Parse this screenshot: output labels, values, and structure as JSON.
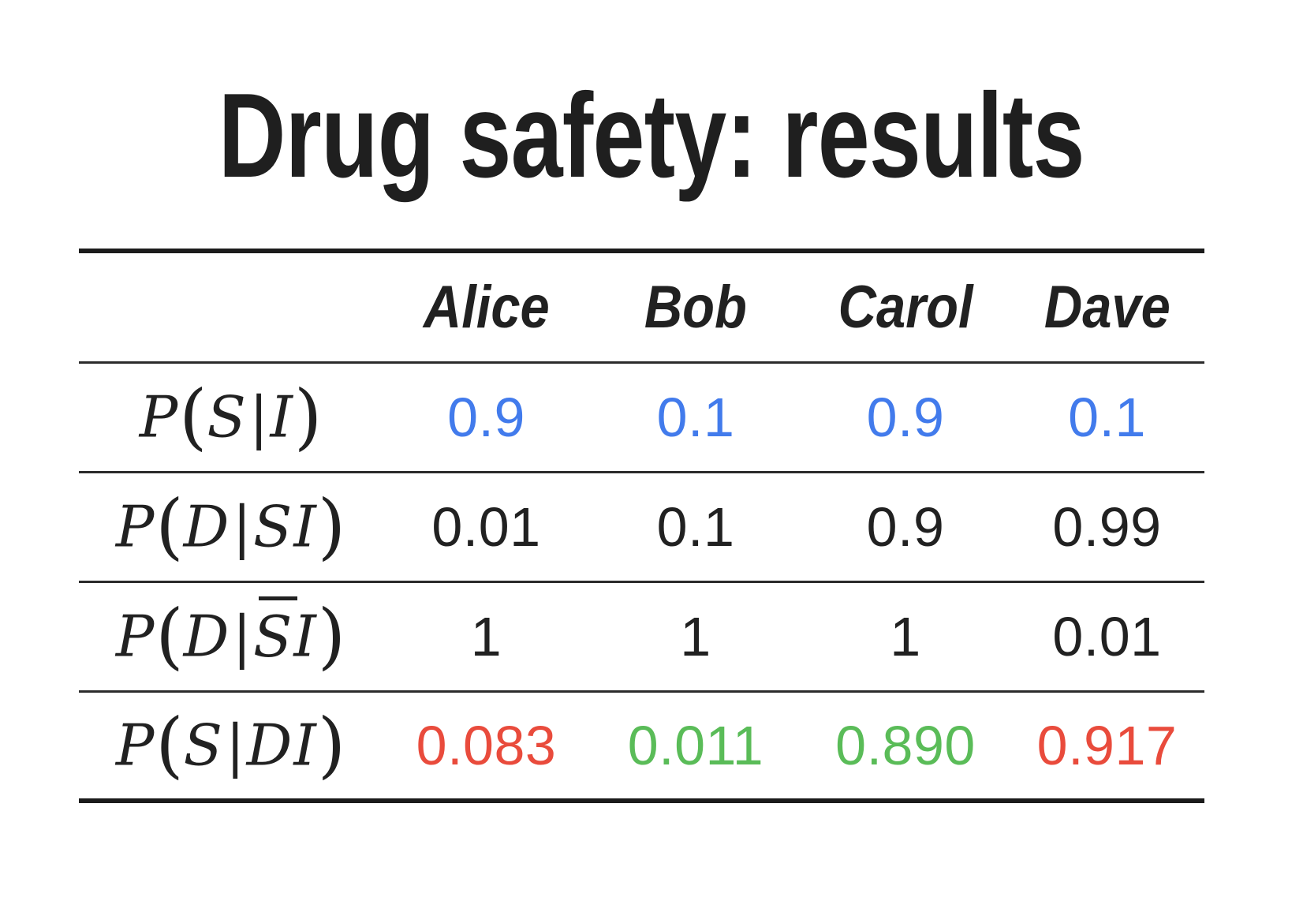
{
  "title": "Drug safety: results",
  "table": {
    "columns": [
      "Alice",
      "Bob",
      "Carol",
      "Dave"
    ],
    "rows": [
      {
        "label": "P(S|I)",
        "values": [
          "0.9",
          "0.1",
          "0.9",
          "0.1"
        ],
        "colors": [
          "blue",
          "blue",
          "blue",
          "blue"
        ]
      },
      {
        "label": "P(D|SI)",
        "values": [
          "0.01",
          "0.1",
          "0.9",
          "0.99"
        ],
        "colors": [
          "ink",
          "ink",
          "ink",
          "ink"
        ]
      },
      {
        "label": "P(D|S̅I)",
        "values": [
          "1",
          "1",
          "1",
          "0.01"
        ],
        "colors": [
          "ink",
          "ink",
          "ink",
          "ink"
        ]
      },
      {
        "label": "P(S|DI)",
        "values": [
          "0.083",
          "0.011",
          "0.890",
          "0.917"
        ],
        "colors": [
          "red",
          "green",
          "green",
          "red"
        ]
      }
    ]
  },
  "palette": {
    "ink": "#212121",
    "blue": "#427BEC",
    "red": "#E94B3C",
    "green": "#5ABC58"
  },
  "chart_data": {
    "type": "table",
    "title": "Drug safety: results",
    "categories": [
      "Alice",
      "Bob",
      "Carol",
      "Dave"
    ],
    "series": [
      {
        "name": "P(S|I)",
        "values": [
          0.9,
          0.1,
          0.9,
          0.1
        ]
      },
      {
        "name": "P(D|SI)",
        "values": [
          0.01,
          0.1,
          0.9,
          0.99
        ]
      },
      {
        "name": "P(D|S̄I)",
        "values": [
          1,
          1,
          1,
          0.01
        ]
      },
      {
        "name": "P(S|DI)",
        "values": [
          0.083,
          0.011,
          0.89,
          0.917
        ]
      }
    ]
  }
}
